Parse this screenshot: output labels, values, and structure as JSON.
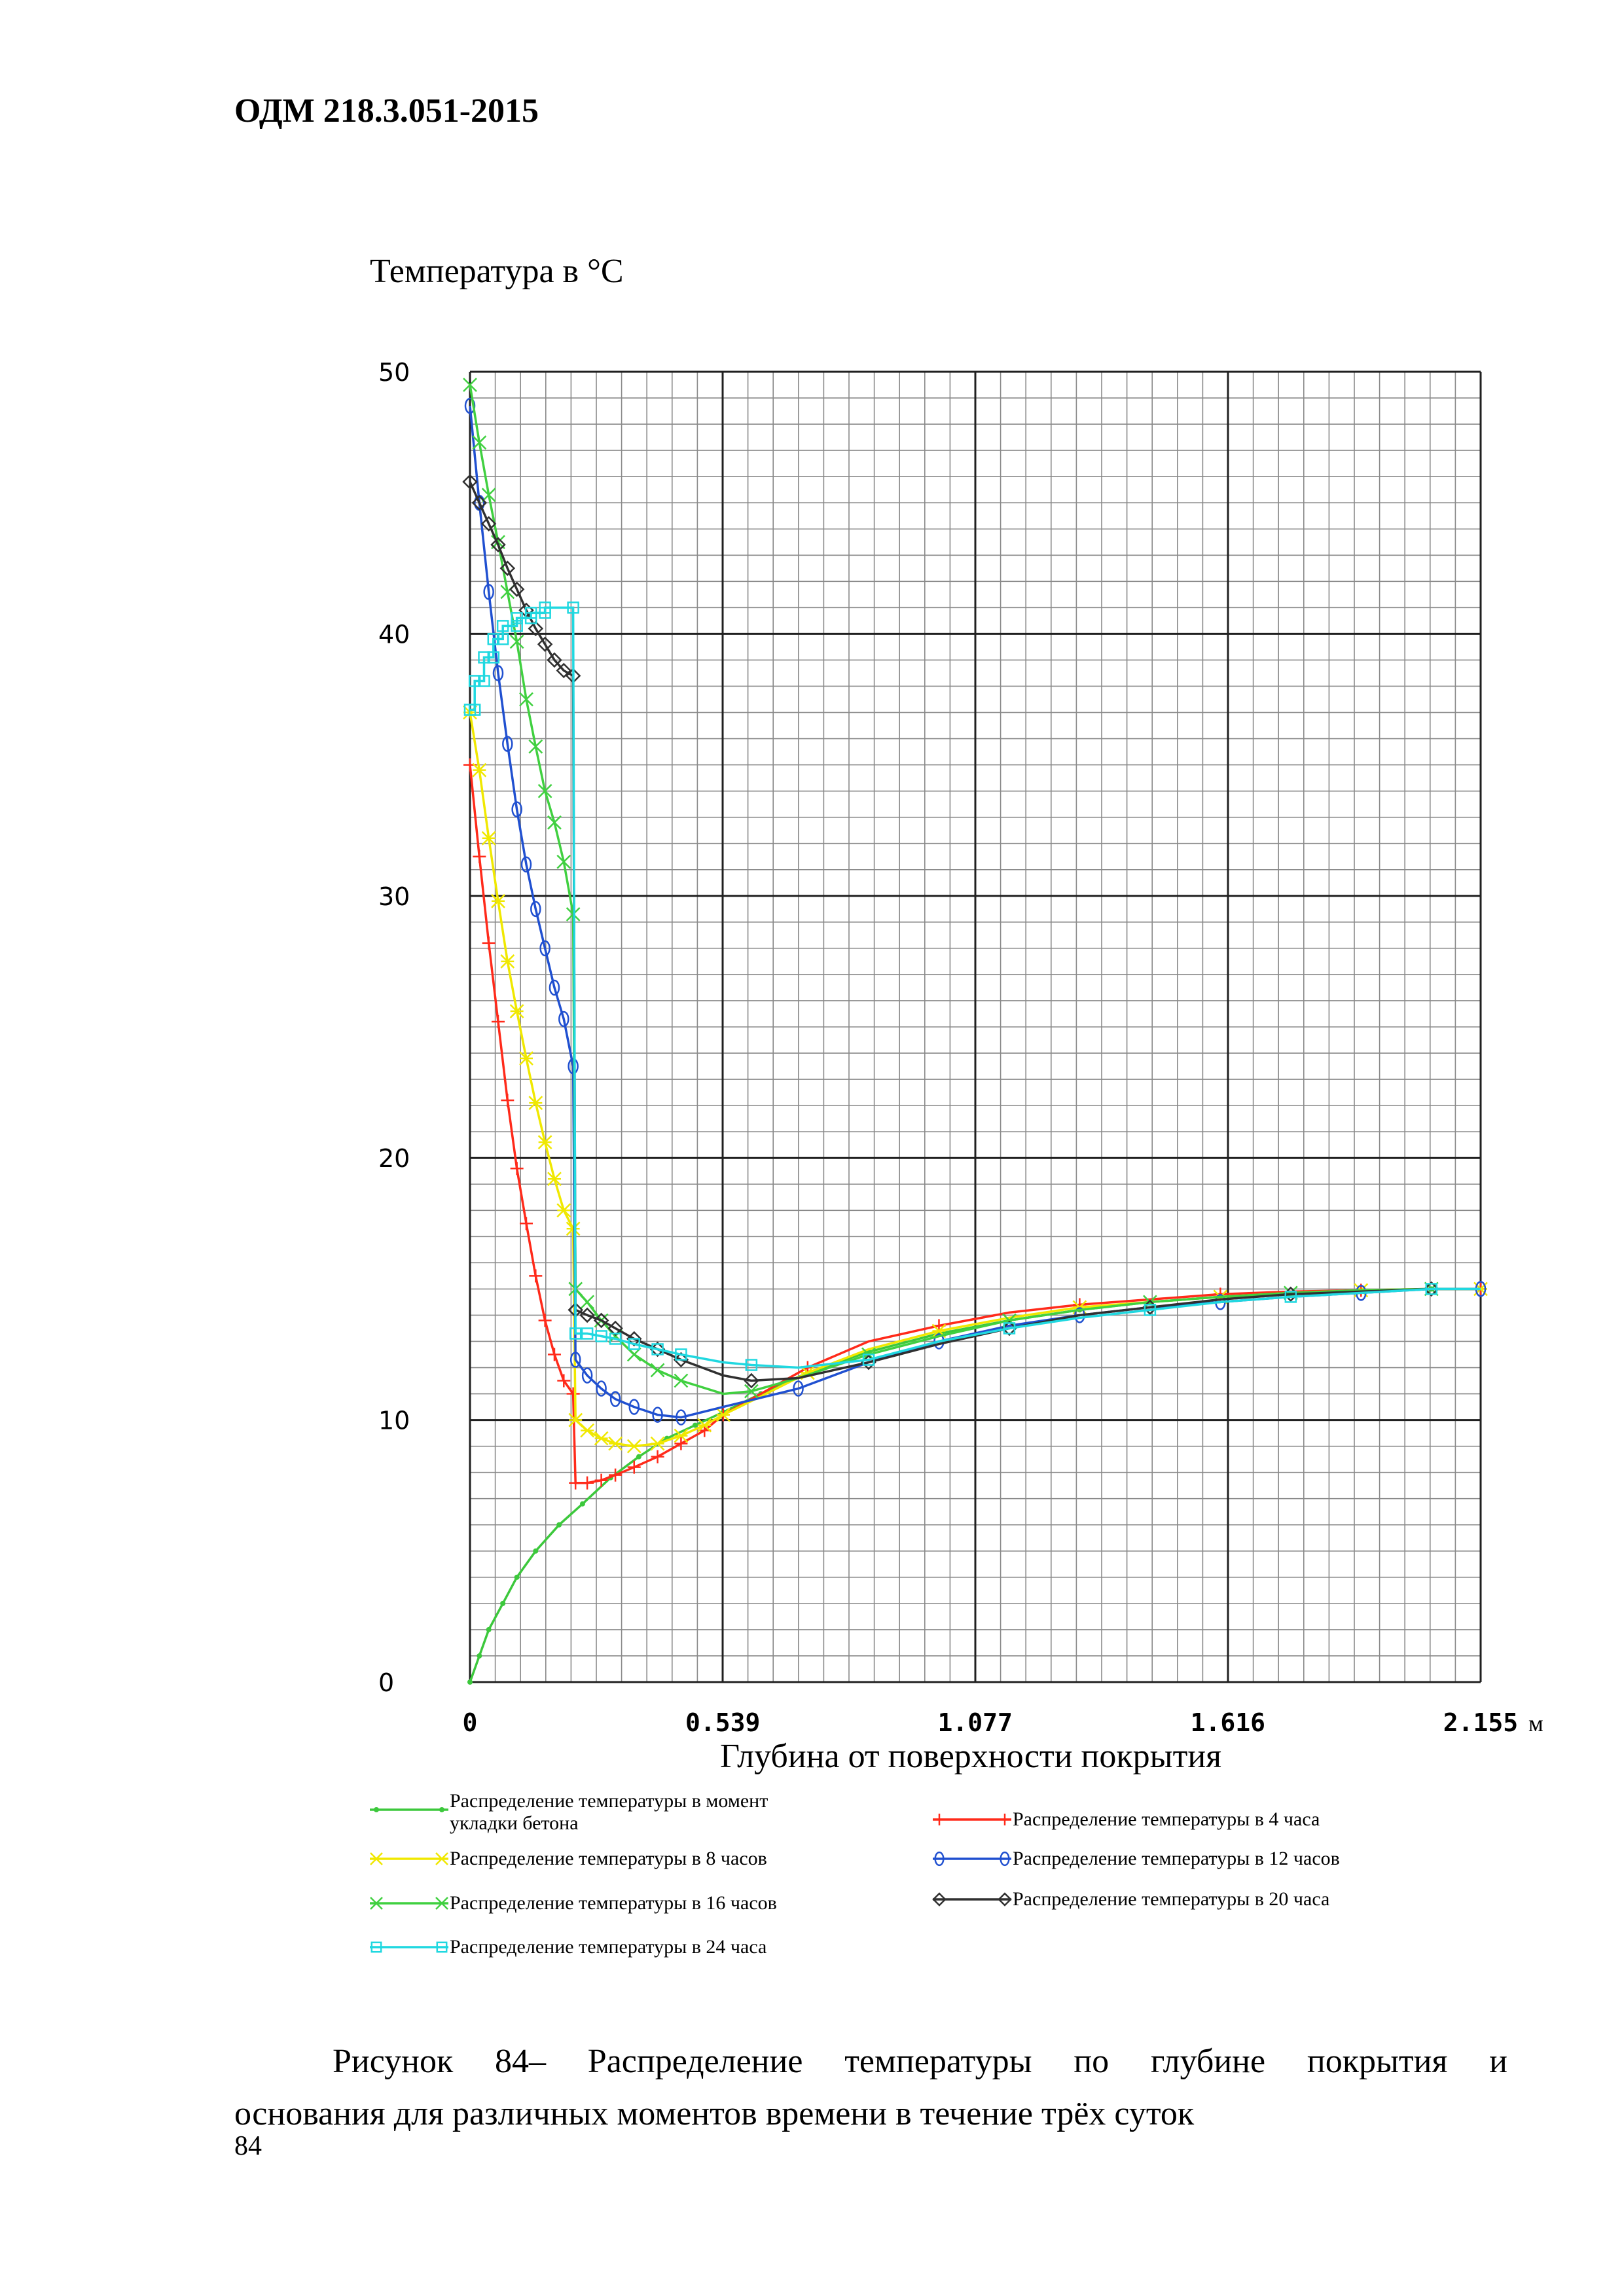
{
  "header": {
    "doc_id": "ОДМ 218.3.051-2015"
  },
  "chart_data": {
    "type": "line",
    "ylabel": "Температура в °С",
    "xlabel": "Глубина от поверхности покрытия",
    "x_unit": "м",
    "xlim": [
      0,
      2.155
    ],
    "ylim": [
      0,
      50
    ],
    "x_ticks": [
      0,
      0.539,
      1.077,
      1.616,
      2.155
    ],
    "x_tick_labels": [
      "0",
      "0.539",
      "1.077",
      "1.616",
      "2.155"
    ],
    "y_ticks": [
      0,
      10,
      20,
      30,
      40,
      50
    ],
    "y_tick_labels": [
      "0",
      "10",
      "20",
      "30",
      "40",
      "50"
    ],
    "grid": true,
    "series": [
      {
        "name": "Распределение температуры в момент укладки бетона",
        "color": "#3cc83c",
        "marker": "dot",
        "points": [
          [
            0,
            0
          ],
          [
            0.02,
            1
          ],
          [
            0.04,
            2
          ],
          [
            0.07,
            3
          ],
          [
            0.1,
            4
          ],
          [
            0.14,
            5
          ],
          [
            0.19,
            6
          ],
          [
            0.24,
            6.8
          ],
          [
            0.3,
            7.8
          ],
          [
            0.36,
            8.6
          ],
          [
            0.42,
            9.3
          ],
          [
            0.48,
            9.8
          ],
          [
            0.54,
            10.3
          ],
          [
            0.62,
            11
          ],
          [
            0.72,
            11.8
          ],
          [
            0.85,
            12.6
          ],
          [
            1.0,
            13.3
          ],
          [
            1.15,
            13.8
          ],
          [
            1.3,
            14.2
          ],
          [
            1.45,
            14.5
          ],
          [
            1.6,
            14.7
          ],
          [
            1.75,
            14.8
          ],
          [
            1.9,
            14.9
          ],
          [
            2.05,
            15
          ],
          [
            2.155,
            15
          ]
        ]
      },
      {
        "name": "Распределение температуры в 4 часа",
        "color": "#ff2a1a",
        "marker": "plus",
        "points": [
          [
            0,
            35
          ],
          [
            0.02,
            31.5
          ],
          [
            0.04,
            28.2
          ],
          [
            0.06,
            25.2
          ],
          [
            0.08,
            22.2
          ],
          [
            0.1,
            19.6
          ],
          [
            0.12,
            17.5
          ],
          [
            0.14,
            15.5
          ],
          [
            0.16,
            13.8
          ],
          [
            0.18,
            12.5
          ],
          [
            0.2,
            11.5
          ],
          [
            0.22,
            11
          ],
          [
            0.225,
            7.6
          ],
          [
            0.25,
            7.6
          ],
          [
            0.28,
            7.7
          ],
          [
            0.31,
            7.9
          ],
          [
            0.35,
            8.2
          ],
          [
            0.4,
            8.6
          ],
          [
            0.45,
            9.1
          ],
          [
            0.5,
            9.6
          ],
          [
            0.54,
            10.2
          ],
          [
            0.62,
            11
          ],
          [
            0.72,
            12
          ],
          [
            0.85,
            13
          ],
          [
            1.0,
            13.6
          ],
          [
            1.15,
            14.1
          ],
          [
            1.3,
            14.4
          ],
          [
            1.45,
            14.6
          ],
          [
            1.6,
            14.8
          ],
          [
            1.75,
            14.9
          ],
          [
            1.9,
            14.95
          ],
          [
            2.05,
            15
          ],
          [
            2.155,
            15
          ]
        ]
      },
      {
        "name": "Распределение температуры в 8 часов",
        "color": "#f0e800",
        "marker": "cross",
        "points": [
          [
            0,
            37
          ],
          [
            0.02,
            34.8
          ],
          [
            0.04,
            32.2
          ],
          [
            0.06,
            29.8
          ],
          [
            0.08,
            27.5
          ],
          [
            0.1,
            25.6
          ],
          [
            0.12,
            23.8
          ],
          [
            0.14,
            22.1
          ],
          [
            0.16,
            20.6
          ],
          [
            0.18,
            19.2
          ],
          [
            0.2,
            18
          ],
          [
            0.22,
            17.3
          ],
          [
            0.225,
            10
          ],
          [
            0.25,
            9.6
          ],
          [
            0.28,
            9.3
          ],
          [
            0.31,
            9.1
          ],
          [
            0.35,
            9
          ],
          [
            0.4,
            9.1
          ],
          [
            0.45,
            9.4
          ],
          [
            0.5,
            9.8
          ],
          [
            0.54,
            10.2
          ],
          [
            0.62,
            10.9
          ],
          [
            0.72,
            11.8
          ],
          [
            0.85,
            12.7
          ],
          [
            1.0,
            13.4
          ],
          [
            1.15,
            13.9
          ],
          [
            1.3,
            14.3
          ],
          [
            1.45,
            14.5
          ],
          [
            1.6,
            14.7
          ],
          [
            1.75,
            14.85
          ],
          [
            1.9,
            14.95
          ],
          [
            2.05,
            15
          ],
          [
            2.155,
            15
          ]
        ]
      },
      {
        "name": "Распределение температуры в 12 часов",
        "color": "#2050d0",
        "marker": "circle",
        "points": [
          [
            0,
            48.7
          ],
          [
            0.02,
            45
          ],
          [
            0.04,
            41.6
          ],
          [
            0.06,
            38.5
          ],
          [
            0.08,
            35.8
          ],
          [
            0.1,
            33.3
          ],
          [
            0.12,
            31.2
          ],
          [
            0.14,
            29.5
          ],
          [
            0.16,
            28
          ],
          [
            0.18,
            26.5
          ],
          [
            0.2,
            25.3
          ],
          [
            0.22,
            23.5
          ],
          [
            0.225,
            12.3
          ],
          [
            0.25,
            11.7
          ],
          [
            0.28,
            11.2
          ],
          [
            0.31,
            10.8
          ],
          [
            0.35,
            10.5
          ],
          [
            0.4,
            10.2
          ],
          [
            0.45,
            10.1
          ],
          [
            0.54,
            10.5
          ],
          [
            0.7,
            11.2
          ],
          [
            0.85,
            12.2
          ],
          [
            1.0,
            13
          ],
          [
            1.15,
            13.6
          ],
          [
            1.3,
            14
          ],
          [
            1.45,
            14.3
          ],
          [
            1.6,
            14.5
          ],
          [
            1.75,
            14.7
          ],
          [
            1.9,
            14.85
          ],
          [
            2.05,
            15
          ],
          [
            2.155,
            15
          ]
        ]
      },
      {
        "name": "Распределение температуры в 16 часов",
        "color": "#40d040",
        "marker": "x",
        "points": [
          [
            0,
            49.5
          ],
          [
            0.02,
            47.3
          ],
          [
            0.04,
            45.3
          ],
          [
            0.06,
            43.5
          ],
          [
            0.08,
            41.6
          ],
          [
            0.1,
            39.7
          ],
          [
            0.12,
            37.5
          ],
          [
            0.14,
            35.7
          ],
          [
            0.16,
            34
          ],
          [
            0.18,
            32.8
          ],
          [
            0.2,
            31.3
          ],
          [
            0.22,
            29.3
          ],
          [
            0.225,
            15
          ],
          [
            0.25,
            14.5
          ],
          [
            0.28,
            13.8
          ],
          [
            0.31,
            13.2
          ],
          [
            0.35,
            12.5
          ],
          [
            0.4,
            11.9
          ],
          [
            0.45,
            11.5
          ],
          [
            0.54,
            11
          ],
          [
            0.6,
            11.1
          ],
          [
            0.7,
            11.6
          ],
          [
            0.85,
            12.5
          ],
          [
            1.0,
            13.2
          ],
          [
            1.15,
            13.8
          ],
          [
            1.3,
            14.2
          ],
          [
            1.45,
            14.5
          ],
          [
            1.6,
            14.7
          ],
          [
            1.75,
            14.85
          ],
          [
            1.9,
            14.95
          ],
          [
            2.05,
            15
          ],
          [
            2.155,
            15
          ]
        ]
      },
      {
        "name": "Распределение температуры в 20 часа",
        "color": "#303030",
        "marker": "diamond",
        "points": [
          [
            0,
            45.8
          ],
          [
            0.02,
            45
          ],
          [
            0.04,
            44.2
          ],
          [
            0.06,
            43.4
          ],
          [
            0.08,
            42.5
          ],
          [
            0.1,
            41.7
          ],
          [
            0.12,
            40.9
          ],
          [
            0.14,
            40.2
          ],
          [
            0.16,
            39.6
          ],
          [
            0.18,
            39
          ],
          [
            0.2,
            38.6
          ],
          [
            0.22,
            38.4
          ],
          [
            0.225,
            14.2
          ],
          [
            0.25,
            14
          ],
          [
            0.28,
            13.8
          ],
          [
            0.31,
            13.5
          ],
          [
            0.35,
            13.1
          ],
          [
            0.4,
            12.7
          ],
          [
            0.45,
            12.3
          ],
          [
            0.54,
            11.7
          ],
          [
            0.6,
            11.5
          ],
          [
            0.7,
            11.6
          ],
          [
            0.85,
            12.2
          ],
          [
            1.0,
            12.9
          ],
          [
            1.15,
            13.5
          ],
          [
            1.3,
            14
          ],
          [
            1.45,
            14.3
          ],
          [
            1.6,
            14.6
          ],
          [
            1.75,
            14.8
          ],
          [
            1.9,
            14.9
          ],
          [
            2.05,
            15
          ],
          [
            2.155,
            15
          ]
        ]
      },
      {
        "name": "Распределение температуры в 24 часа",
        "color": "#20d8e0",
        "marker": "square",
        "points": [
          [
            0,
            37.1
          ],
          [
            0.01,
            37.1
          ],
          [
            0.01,
            38.2
          ],
          [
            0.03,
            38.2
          ],
          [
            0.03,
            39.1
          ],
          [
            0.05,
            39.1
          ],
          [
            0.05,
            39.8
          ],
          [
            0.07,
            39.8
          ],
          [
            0.07,
            40.3
          ],
          [
            0.1,
            40.3
          ],
          [
            0.1,
            40.6
          ],
          [
            0.13,
            40.6
          ],
          [
            0.13,
            40.8
          ],
          [
            0.16,
            40.8
          ],
          [
            0.16,
            41
          ],
          [
            0.22,
            41
          ],
          [
            0.225,
            13.3
          ],
          [
            0.25,
            13.3
          ],
          [
            0.28,
            13.2
          ],
          [
            0.31,
            13.1
          ],
          [
            0.35,
            12.9
          ],
          [
            0.4,
            12.7
          ],
          [
            0.45,
            12.5
          ],
          [
            0.54,
            12.2
          ],
          [
            0.6,
            12.1
          ],
          [
            0.7,
            12
          ],
          [
            0.85,
            12.3
          ],
          [
            1.0,
            13
          ],
          [
            1.15,
            13.5
          ],
          [
            1.3,
            13.9
          ],
          [
            1.45,
            14.2
          ],
          [
            1.6,
            14.5
          ],
          [
            1.75,
            14.7
          ],
          [
            1.9,
            14.85
          ],
          [
            2.05,
            15
          ],
          [
            2.155,
            15
          ]
        ]
      }
    ]
  },
  "caption": {
    "line1": "Рисунок 84– Распределение температуры по глубине покрытия и",
    "line2": "основания для различных моментов времени в течение трёх суток"
  },
  "page_number": "84"
}
